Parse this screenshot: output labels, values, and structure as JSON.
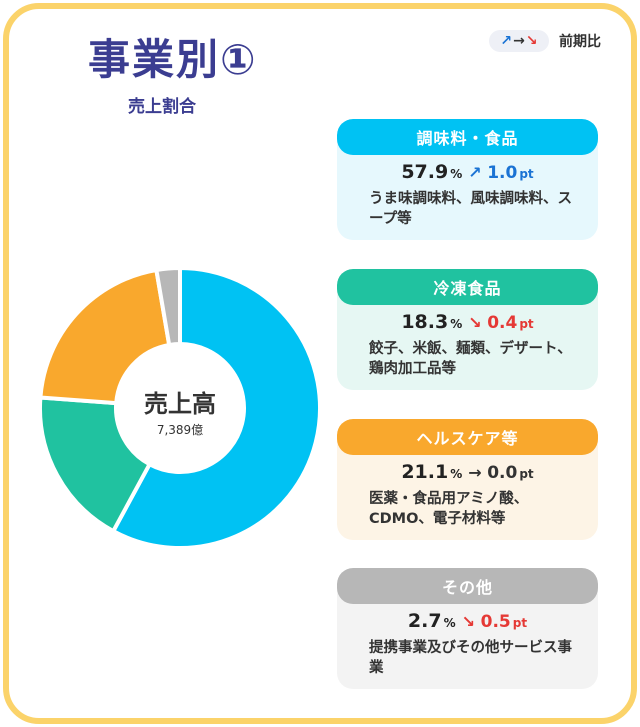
{
  "title": "事業別①",
  "subtitle": "売上割合",
  "legend": {
    "arrows": [
      "↗",
      "→",
      "↘"
    ],
    "label": "前期比"
  },
  "center": {
    "label": "売上高",
    "value": "7,389億"
  },
  "colors": {
    "seasoning": "#00c2f3",
    "frozen": "#20c2a0",
    "health": "#f9a82d",
    "other": "#b7b7b7",
    "up": "#1a73d4",
    "down": "#e53935",
    "flat": "#333333",
    "frame": "#fbd36a",
    "title": "#3b3d91"
  },
  "cards": [
    {
      "name": "調味料・食品",
      "value": "57.9",
      "unit": "%",
      "arrow": "↗",
      "direction": "up",
      "change": "1.0",
      "pt": "pt",
      "description": "うま味調味料、風味調味料、スープ等",
      "header_color": "#00c2f3",
      "body_color": "#e6f8fd"
    },
    {
      "name": "冷凍食品",
      "value": "18.3",
      "unit": "%",
      "arrow": "↘",
      "direction": "down",
      "change": "0.4",
      "pt": "pt",
      "description": "餃子、米飯、麺類、デザート、鶏肉加工品等",
      "header_color": "#20c2a0",
      "body_color": "#e6f7f3"
    },
    {
      "name": "ヘルスケア等",
      "value": "21.1",
      "unit": "%",
      "arrow": "→",
      "direction": "flat",
      "change": "0.0",
      "pt": "pt",
      "description": "医薬・食品用アミノ酸、CDMO、電子材料等",
      "header_color": "#f9a82d",
      "body_color": "#fdf4e6"
    },
    {
      "name": "その他",
      "value": "2.7",
      "unit": "%",
      "arrow": "↘",
      "direction": "down",
      "change": "0.5",
      "pt": "pt",
      "description": "提携事業及びその他サービス事業",
      "header_color": "#b7b7b7",
      "body_color": "#f3f3f3"
    }
  ],
  "chart_data": {
    "type": "pie",
    "categories": [
      "調味料・食品",
      "冷凍食品",
      "ヘルスケア等",
      "その他"
    ],
    "values": [
      57.9,
      18.3,
      21.1,
      2.7
    ],
    "donut": true,
    "start": "top",
    "direction": "clockwise"
  }
}
